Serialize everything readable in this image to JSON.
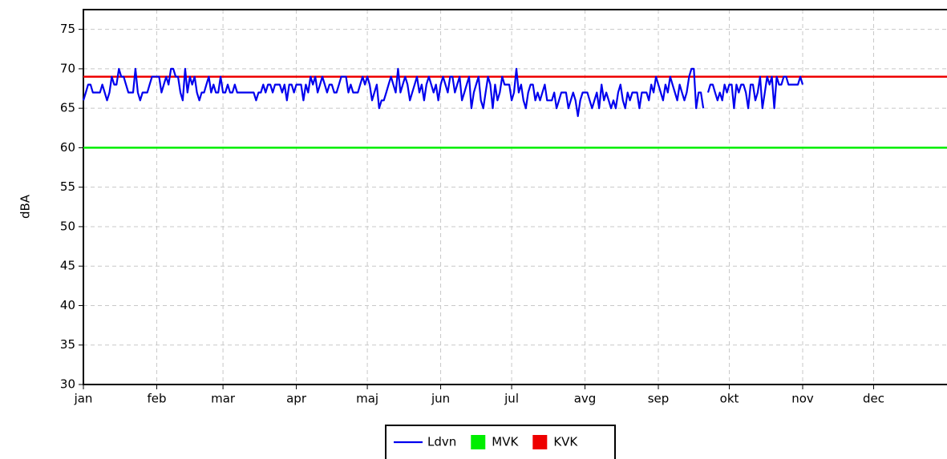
{
  "chart_data": {
    "type": "line",
    "ylabel": "dBA",
    "x": [
      0,
      1,
      2,
      3,
      4,
      5,
      6,
      7,
      8,
      9,
      10,
      11,
      12,
      13,
      14,
      15,
      16,
      17,
      18,
      19,
      20,
      21,
      22,
      23,
      24,
      25,
      26,
      27,
      28,
      29,
      30,
      31,
      32,
      33,
      34,
      35,
      36,
      37,
      38,
      39,
      40,
      41,
      42,
      43,
      44,
      45,
      46,
      47,
      48,
      49,
      50,
      51,
      52,
      53,
      54,
      55,
      56,
      57,
      58,
      59,
      60,
      61,
      62,
      63,
      64,
      65,
      66,
      67,
      68,
      69,
      70,
      71,
      72,
      73,
      74,
      75,
      76,
      77,
      78,
      79,
      80,
      81,
      82,
      83,
      84,
      85,
      86,
      87,
      88,
      89,
      90,
      91,
      92,
      93,
      94,
      95,
      96,
      97,
      98,
      99,
      100,
      101,
      102,
      103,
      104,
      105,
      106,
      107,
      108,
      109,
      110,
      111,
      112,
      113,
      114,
      115,
      116,
      117,
      118,
      119,
      120,
      121,
      122,
      123,
      124,
      125,
      126,
      127,
      128,
      129,
      130,
      131,
      132,
      133,
      134,
      135,
      136,
      137,
      138,
      139,
      140,
      141,
      142,
      143,
      144,
      145,
      146,
      147,
      148,
      149,
      150,
      151,
      152,
      153,
      154,
      155,
      156,
      157,
      158,
      159,
      160,
      161,
      162,
      163,
      164,
      165,
      166,
      167,
      168,
      169,
      170,
      171,
      172,
      173,
      174,
      175,
      176,
      177,
      178,
      179,
      180,
      181,
      182,
      183,
      184,
      185,
      186,
      187,
      188,
      189,
      190,
      191,
      192,
      193,
      194,
      195,
      196,
      197,
      198,
      199,
      200,
      201,
      202,
      203,
      204,
      205,
      206,
      207,
      208,
      209,
      210,
      211,
      212,
      213,
      214,
      215,
      216,
      217,
      218,
      219,
      220,
      221,
      222,
      223,
      224,
      225,
      226,
      227,
      228,
      229,
      230,
      231,
      232,
      233,
      234,
      235,
      236,
      237,
      238,
      239,
      240,
      241,
      242,
      243,
      244,
      245,
      246,
      247,
      248,
      249,
      250,
      251,
      252,
      253,
      254,
      255,
      256,
      257,
      258,
      259,
      260,
      261,
      262,
      263,
      264,
      265,
      266,
      267,
      268,
      269,
      270,
      271,
      272,
      273,
      274,
      275,
      276,
      277,
      278,
      279,
      280,
      281,
      282,
      283,
      284,
      285,
      286,
      287,
      288,
      289,
      290,
      291,
      292,
      293,
      294,
      295,
      296,
      297,
      298,
      299,
      300,
      301,
      302,
      303,
      304
    ],
    "series": [
      {
        "name": "Ldvn",
        "color": "#0000ee",
        "values": [
          66,
          67,
          68,
          68,
          67,
          67,
          67,
          67,
          68,
          67,
          66,
          67,
          69,
          68,
          68,
          70,
          69,
          69,
          68,
          67,
          67,
          67,
          70,
          67,
          66,
          67,
          67,
          67,
          68,
          69,
          69,
          69,
          69,
          67,
          68,
          69,
          68,
          70,
          70,
          69,
          69,
          67,
          66,
          70,
          67,
          69,
          68,
          69,
          67,
          66,
          67,
          67,
          68,
          69,
          67,
          68,
          67,
          67,
          69,
          67,
          67,
          68,
          67,
          67,
          68,
          67,
          67,
          67,
          67,
          67,
          67,
          67,
          67,
          66,
          67,
          67,
          68,
          67,
          68,
          68,
          67,
          68,
          68,
          68,
          67,
          68,
          66,
          68,
          68,
          67,
          68,
          68,
          68,
          66,
          68,
          67,
          69,
          68,
          69,
          67,
          68,
          69,
          68,
          67,
          68,
          68,
          67,
          67,
          68,
          69,
          69,
          69,
          67,
          68,
          67,
          67,
          67,
          68,
          69,
          68,
          69,
          68,
          66,
          67,
          68,
          65,
          66,
          66,
          67,
          68,
          69,
          68,
          67,
          70,
          67,
          68,
          69,
          68,
          66,
          67,
          68,
          69,
          67,
          68,
          66,
          68,
          69,
          68,
          67,
          68,
          66,
          68,
          69,
          68,
          67,
          69,
          69,
          67,
          68,
          69,
          66,
          67,
          68,
          69,
          65,
          67,
          68,
          69,
          66,
          65,
          67,
          69,
          68,
          65,
          68,
          66,
          67,
          69,
          68,
          68,
          68,
          66,
          67,
          70,
          67,
          68,
          66,
          65,
          67,
          68,
          68,
          66,
          67,
          66,
          67,
          68,
          66,
          66,
          66,
          67,
          65,
          66,
          67,
          67,
          67,
          65,
          66,
          67,
          66,
          64,
          66,
          67,
          67,
          67,
          66,
          65,
          66,
          67,
          65,
          68,
          66,
          67,
          66,
          65,
          66,
          65,
          67,
          68,
          66,
          65,
          67,
          66,
          67,
          67,
          67,
          65,
          67,
          67,
          67,
          66,
          68,
          67,
          69,
          68,
          67,
          66,
          68,
          67,
          69,
          68,
          67,
          66,
          68,
          67,
          66,
          67,
          69,
          70,
          70,
          65,
          67,
          67,
          65,
          null,
          67,
          68,
          68,
          67,
          66,
          67,
          66,
          68,
          67,
          68,
          68,
          65,
          68,
          67,
          68,
          68,
          67,
          65,
          68,
          68,
          66,
          67,
          69,
          65,
          67,
          69,
          68,
          69,
          65,
          69,
          68,
          68,
          69,
          69,
          68,
          68,
          68,
          68,
          68,
          69,
          68
        ]
      }
    ],
    "thresholds": [
      {
        "name": "MVK",
        "color": "#00ee00",
        "value": 60
      },
      {
        "name": "KVK",
        "color": "#ee0000",
        "value": 69
      }
    ],
    "xlim": [
      0,
      365
    ],
    "xticks": [
      {
        "value": 0,
        "label": "jan"
      },
      {
        "value": 31,
        "label": "feb"
      },
      {
        "value": 59,
        "label": "mar"
      },
      {
        "value": 90,
        "label": "apr"
      },
      {
        "value": 120,
        "label": "maj"
      },
      {
        "value": 151,
        "label": "jun"
      },
      {
        "value": 181,
        "label": "jul"
      },
      {
        "value": 212,
        "label": "avg"
      },
      {
        "value": 243,
        "label": "sep"
      },
      {
        "value": 273,
        "label": "okt"
      },
      {
        "value": 304,
        "label": "nov"
      },
      {
        "value": 334,
        "label": "dec"
      }
    ],
    "ylim": [
      30,
      77.5
    ],
    "yticks": [
      30,
      35,
      40,
      45,
      50,
      55,
      60,
      65,
      70,
      75
    ],
    "grid": true,
    "legend": "bottom"
  }
}
